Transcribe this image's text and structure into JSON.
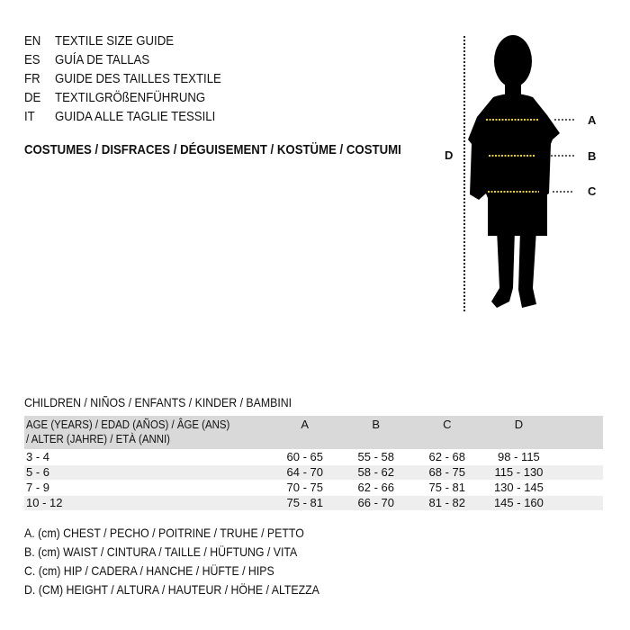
{
  "titles": [
    {
      "code": "EN",
      "text": "TEXTILE SIZE GUIDE"
    },
    {
      "code": "ES",
      "text": "GUÍA DE TALLAS"
    },
    {
      "code": "FR",
      "text": "GUIDE DES TAILLES TEXTILE"
    },
    {
      "code": "DE",
      "text": "TEXTILGRÖßENFÜHRUNG"
    },
    {
      "code": "IT",
      "text": "GUIDA ALLE TAGLIE TESSILI"
    }
  ],
  "category": "COSTUMES / DISFRACES / DÉGUISEMENT / KOSTÜME / COSTUMI",
  "figure": {
    "labels": {
      "a": "A",
      "b": "B",
      "c": "C",
      "d": "D"
    },
    "accent_color": "#e8d21d"
  },
  "table": {
    "caption": "CHILDREN / NIÑOS / ENFANTS / KINDER / BAMBINI",
    "headers": [
      "AGE (YEARS) / EDAD (AÑOS) / ÂGE (ANS) / ALTER (JAHRE) / ETÀ (ANNI)",
      "A",
      "B",
      "C",
      "D"
    ],
    "rows": [
      [
        "3 - 4",
        "60 - 65",
        "55 - 58",
        "62 - 68",
        "98 - 115"
      ],
      [
        "5 - 6",
        "64 - 70",
        "58 - 62",
        "68 - 75",
        "115 - 130"
      ],
      [
        "7 - 9",
        "70 - 75",
        "62 - 66",
        "75 - 81",
        "130 - 145"
      ],
      [
        "10 - 12",
        "75 - 81",
        "66 - 70",
        "81 - 82",
        "145 - 160"
      ]
    ]
  },
  "legend": [
    "A. (cm) CHEST / PECHO / POITRINE / TRUHE / PETTO",
    "B. (cm) WAIST / CINTURA / TAILLE / HÜFTUNG / VITA",
    "C. (cm) HIP / CADERA / HANCHE / HÜFTE / HIPS",
    "D. (CM) HEIGHT / ALTURA / HAUTEUR / HÖHE / ALTEZZA"
  ]
}
